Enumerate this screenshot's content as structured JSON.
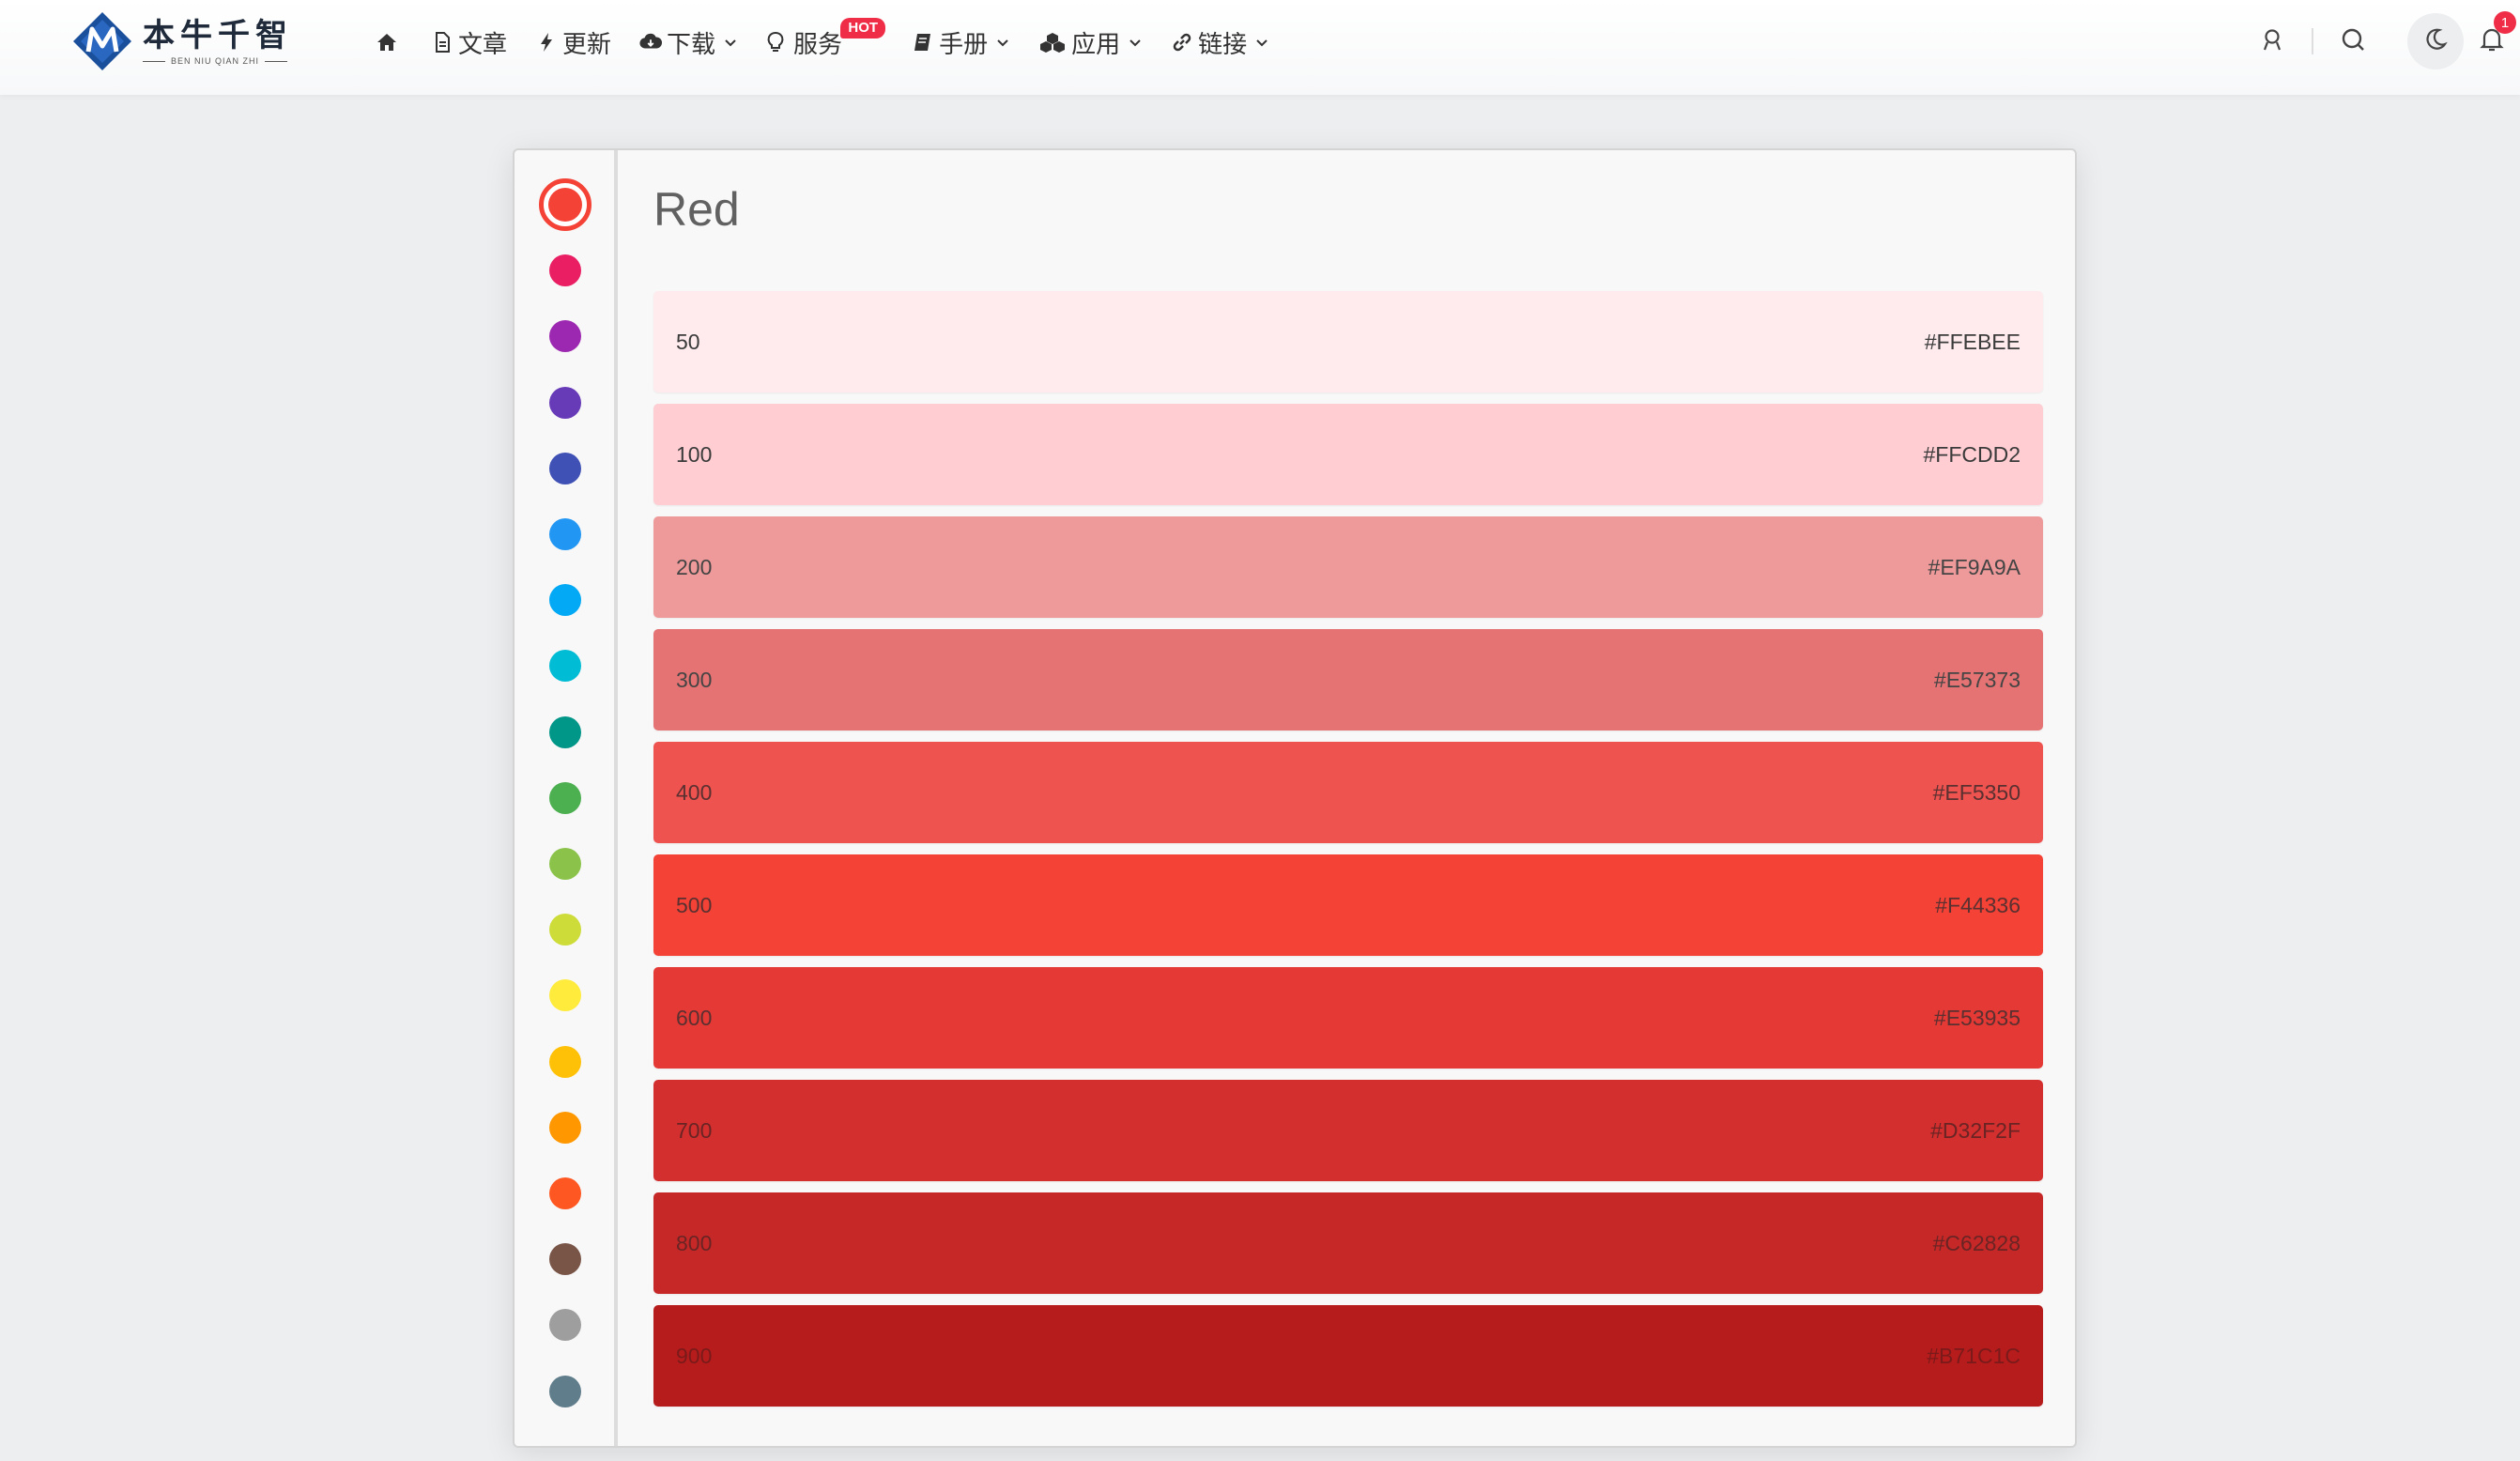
{
  "header": {
    "logo": {
      "text_cn": "本牛千智",
      "text_en": "BEN NIU QIAN ZHI",
      "colors": {
        "blue": "#1a4f9c",
        "dark": "#1f2a3a"
      }
    },
    "nav": [
      {
        "icon": "home-icon",
        "label": ""
      },
      {
        "icon": "document-icon",
        "label": "文章"
      },
      {
        "icon": "lightning-icon",
        "label": "更新"
      },
      {
        "icon": "cloud-download-icon",
        "label": "下载",
        "dropdown": true
      },
      {
        "icon": "lightbulb-icon",
        "label": "服务",
        "badge": "HOT"
      },
      {
        "icon": "book-icon",
        "label": "手册",
        "dropdown": true
      },
      {
        "icon": "cubes-icon",
        "label": "应用",
        "dropdown": true
      },
      {
        "icon": "link-icon",
        "label": "链接",
        "dropdown": true
      }
    ],
    "tools": {
      "notification_count": "1"
    },
    "colors": {
      "badge": "#f02d47"
    }
  },
  "palette": {
    "selected": "Red",
    "swatches": [
      {
        "name": "red",
        "color": "#F44336",
        "active": true
      },
      {
        "name": "pink",
        "color": "#E91E63"
      },
      {
        "name": "purple",
        "color": "#9C27B0"
      },
      {
        "name": "deep-purple",
        "color": "#673AB7"
      },
      {
        "name": "indigo",
        "color": "#3F51B5"
      },
      {
        "name": "blue",
        "color": "#2196F3"
      },
      {
        "name": "light-blue",
        "color": "#03A9F4"
      },
      {
        "name": "cyan",
        "color": "#00BCD4"
      },
      {
        "name": "teal",
        "color": "#009688"
      },
      {
        "name": "green",
        "color": "#4CAF50"
      },
      {
        "name": "light-green",
        "color": "#8BC34A"
      },
      {
        "name": "lime",
        "color": "#CDDC39"
      },
      {
        "name": "yellow",
        "color": "#FFEB3B"
      },
      {
        "name": "amber",
        "color": "#FFC107"
      },
      {
        "name": "orange",
        "color": "#FF9800"
      },
      {
        "name": "deep-orange",
        "color": "#FF5722"
      },
      {
        "name": "brown",
        "color": "#795548"
      },
      {
        "name": "grey",
        "color": "#9E9E9E"
      },
      {
        "name": "blue-grey",
        "color": "#607D8B"
      }
    ]
  },
  "color_panel": {
    "title": "Red",
    "shades": [
      {
        "level": "50",
        "hex": "#FFEBEE"
      },
      {
        "level": "100",
        "hex": "#FFCDD2"
      },
      {
        "level": "200",
        "hex": "#EF9A9A"
      },
      {
        "level": "300",
        "hex": "#E57373"
      },
      {
        "level": "400",
        "hex": "#EF5350"
      },
      {
        "level": "500",
        "hex": "#F44336"
      },
      {
        "level": "600",
        "hex": "#E53935"
      },
      {
        "level": "700",
        "hex": "#D32F2F"
      },
      {
        "level": "800",
        "hex": "#C62828"
      },
      {
        "level": "900",
        "hex": "#B71C1C"
      }
    ]
  }
}
